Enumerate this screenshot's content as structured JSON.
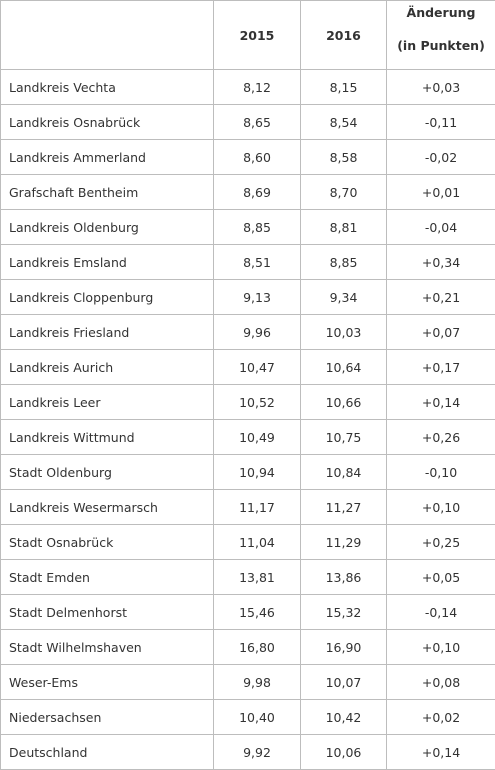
{
  "table": {
    "headers": {
      "col1": "",
      "col2": "2015",
      "col3": "2016",
      "col4_line1": "Änderung",
      "col4_line2": "(in Punkten)"
    },
    "rows": [
      {
        "name": "Landkreis Vechta",
        "y2015": "8,12",
        "y2016": "8,15",
        "change": "+0,03"
      },
      {
        "name": "Landkreis Osnabrück",
        "y2015": "8,65",
        "y2016": "8,54",
        "change": "-0,11"
      },
      {
        "name": "Landkreis Ammerland",
        "y2015": "8,60",
        "y2016": "8,58",
        "change": "-0,02"
      },
      {
        "name": "Grafschaft Bentheim",
        "y2015": "8,69",
        "y2016": "8,70",
        "change": "+0,01"
      },
      {
        "name": "Landkreis Oldenburg",
        "y2015": "8,85",
        "y2016": "8,81",
        "change": "-0,04"
      },
      {
        "name": "Landkreis Emsland",
        "y2015": "8,51",
        "y2016": "8,85",
        "change": "+0,34"
      },
      {
        "name": "Landkreis Cloppenburg",
        "y2015": "9,13",
        "y2016": "9,34",
        "change": "+0,21"
      },
      {
        "name": "Landkreis Friesland",
        "y2015": "9,96",
        "y2016": "10,03",
        "change": "+0,07"
      },
      {
        "name": "Landkreis Aurich",
        "y2015": "10,47",
        "y2016": "10,64",
        "change": "+0,17"
      },
      {
        "name": "Landkreis Leer",
        "y2015": "10,52",
        "y2016": "10,66",
        "change": "+0,14"
      },
      {
        "name": "Landkreis Wittmund",
        "y2015": "10,49",
        "y2016": "10,75",
        "change": "+0,26"
      },
      {
        "name": "Stadt Oldenburg",
        "y2015": "10,94",
        "y2016": "10,84",
        "change": "-0,10"
      },
      {
        "name": "Landkreis Wesermarsch",
        "y2015": "11,17",
        "y2016": "11,27",
        "change": "+0,10"
      },
      {
        "name": "Stadt Osnabrück",
        "y2015": "11,04",
        "y2016": "11,29",
        "change": "+0,25"
      },
      {
        "name": "Stadt Emden",
        "y2015": "13,81",
        "y2016": "13,86",
        "change": "+0,05"
      },
      {
        "name": "Stadt Delmenhorst",
        "y2015": "15,46",
        "y2016": "15,32",
        "change": "-0,14"
      },
      {
        "name": "Stadt Wilhelmshaven",
        "y2015": "16,80",
        "y2016": "16,90",
        "change": "+0,10"
      },
      {
        "name": "Weser-Ems",
        "y2015": "9,98",
        "y2016": "10,07",
        "change": "+0,08"
      },
      {
        "name": "Niedersachsen",
        "y2015": "10,40",
        "y2016": "10,42",
        "change": "+0,02"
      },
      {
        "name": "Deutschland",
        "y2015": "9,92",
        "y2016": "10,06",
        "change": "+0,14"
      }
    ]
  }
}
